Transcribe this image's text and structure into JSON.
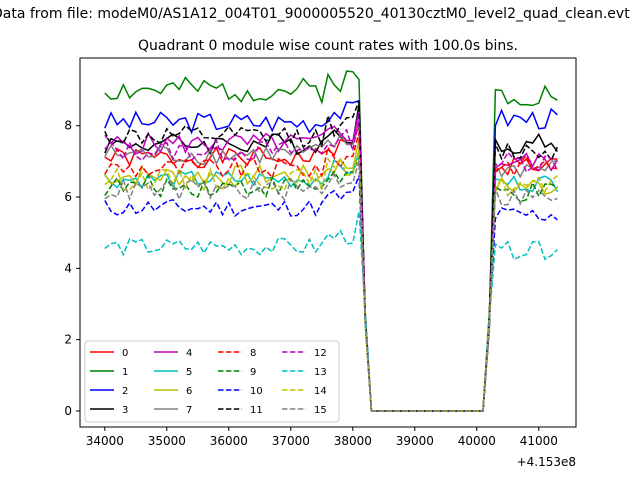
{
  "chart_data": {
    "type": "line",
    "suptitle": "Data from file: modeM0/AS1A12_004T01_9000005520_40130cztM0_level2_quad_clean.evt",
    "title": "Quadrant 0 module wise count rates with 100.0s bins.",
    "xlabel": "",
    "ylabel": "",
    "x_offset_label": "+4.153e8",
    "xlim": [
      33600,
      41600
    ],
    "ylim": [
      -0.45,
      9.9
    ],
    "xticks": [
      34000,
      35000,
      36000,
      37000,
      38000,
      39000,
      40000,
      41000
    ],
    "yticks": [
      0,
      2,
      4,
      6,
      8
    ],
    "x_segments": [
      {
        "start": 34000,
        "end": 38100,
        "step": 100
      },
      {
        "start": 38200,
        "end": 38200,
        "step": 100
      },
      {
        "start": 38300,
        "end": 40100,
        "step": 100
      },
      {
        "start": 40200,
        "end": 40200,
        "step": 100
      },
      {
        "start": 40300,
        "end": 41300,
        "step": 100
      }
    ],
    "legend_position": "lower-left",
    "legend_columns": 4,
    "series": [
      {
        "name": "0",
        "color": "#ff0000",
        "dash": "solid",
        "base": 7.1,
        "amp": 0.28,
        "post": 6.9,
        "peak": 8.1,
        "seed": 1
      },
      {
        "name": "1",
        "color": "#008000",
        "dash": "solid",
        "base": 9.0,
        "amp": 0.35,
        "post": 8.9,
        "peak": 9.3,
        "seed": 2
      },
      {
        "name": "2",
        "color": "#0000ff",
        "dash": "solid",
        "base": 8.1,
        "amp": 0.3,
        "post": 8.2,
        "peak": 8.7,
        "seed": 3
      },
      {
        "name": "3",
        "color": "#000000",
        "dash": "solid",
        "base": 7.5,
        "amp": 0.3,
        "post": 7.5,
        "peak": 8.6,
        "seed": 4
      },
      {
        "name": "4",
        "color": "#bf00bf",
        "dash": "solid",
        "base": 7.5,
        "amp": 0.3,
        "post": 7.0,
        "peak": 8.4,
        "seed": 5
      },
      {
        "name": "5",
        "color": "#00bfbf",
        "dash": "solid",
        "base": 6.5,
        "amp": 0.25,
        "post": 6.4,
        "peak": 7.3,
        "seed": 6
      },
      {
        "name": "6",
        "color": "#bfbf00",
        "dash": "solid",
        "base": 6.6,
        "amp": 0.3,
        "post": 6.3,
        "peak": 7.6,
        "seed": 7
      },
      {
        "name": "7",
        "color": "#808080",
        "dash": "solid",
        "base": 7.2,
        "amp": 0.3,
        "post": 6.8,
        "peak": 8.0,
        "seed": 8
      },
      {
        "name": "8",
        "color": "#ff0000",
        "dash": "dashed",
        "base": 6.8,
        "amp": 0.3,
        "post": 6.9,
        "peak": 7.8,
        "seed": 9
      },
      {
        "name": "9",
        "color": "#008000",
        "dash": "dashed",
        "base": 6.3,
        "amp": 0.3,
        "post": 6.1,
        "peak": 7.1,
        "seed": 10
      },
      {
        "name": "10",
        "color": "#0000ff",
        "dash": "dashed",
        "base": 5.7,
        "amp": 0.25,
        "post": 5.5,
        "peak": 6.6,
        "seed": 11
      },
      {
        "name": "11",
        "color": "#000000",
        "dash": "dashed",
        "base": 7.7,
        "amp": 0.3,
        "post": 7.3,
        "peak": 8.7,
        "seed": 12
      },
      {
        "name": "12",
        "color": "#bf00bf",
        "dash": "dashed",
        "base": 7.3,
        "amp": 0.3,
        "post": 7.0,
        "peak": 8.2,
        "seed": 13
      },
      {
        "name": "13",
        "color": "#00bfbf",
        "dash": "dashed",
        "base": 4.6,
        "amp": 0.25,
        "post": 4.5,
        "peak": 5.6,
        "seed": 14
      },
      {
        "name": "14",
        "color": "#bfbf00",
        "dash": "dashed",
        "base": 6.5,
        "amp": 0.3,
        "post": 6.3,
        "peak": 7.3,
        "seed": 15
      },
      {
        "name": "15",
        "color": "#808080",
        "dash": "dashed",
        "base": 6.2,
        "amp": 0.3,
        "post": 6.0,
        "peak": 7.0,
        "seed": 16
      }
    ]
  }
}
